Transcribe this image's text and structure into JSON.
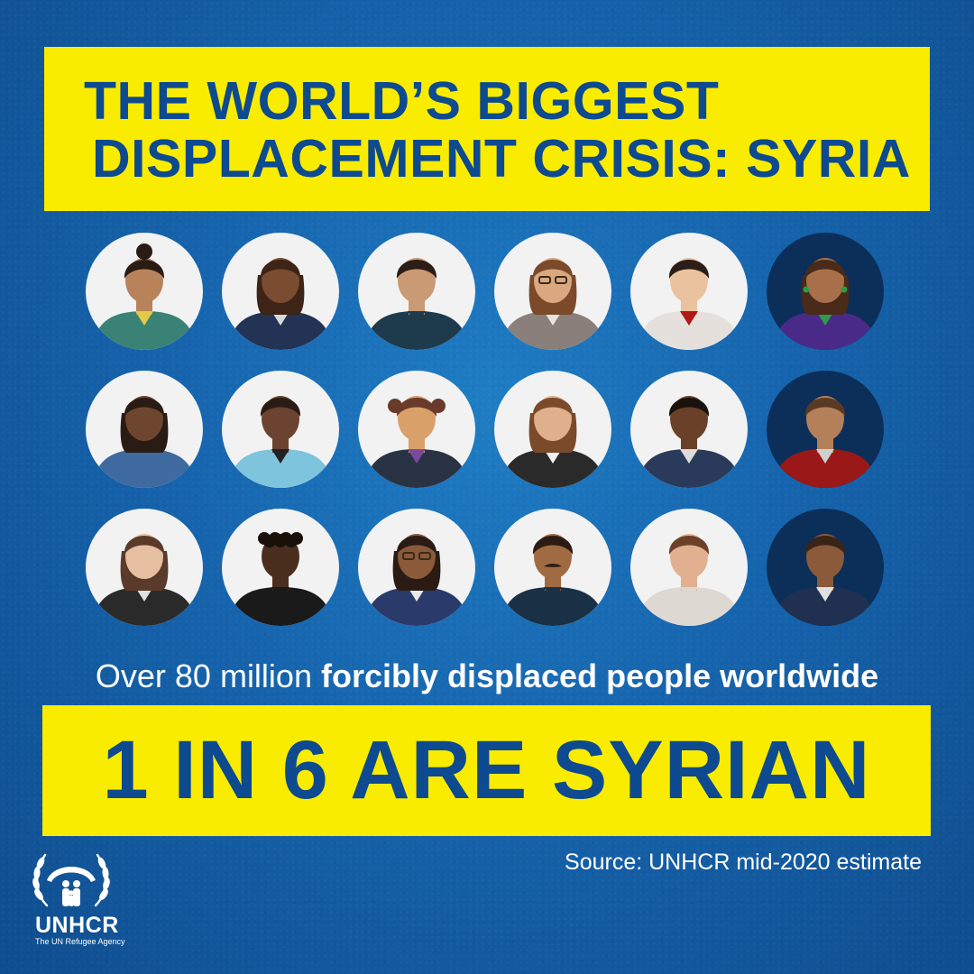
{
  "title": {
    "line1": "THE WORLD’S BIGGEST",
    "line2": "DISPLACEMENT CRISIS: SYRIA"
  },
  "people": [
    {
      "icon": "woman-hair-bun-icon",
      "highlight": false
    },
    {
      "icon": "woman-suit-icon",
      "highlight": false
    },
    {
      "icon": "man-dark-shirt-icon",
      "highlight": false
    },
    {
      "icon": "woman-glasses-icon",
      "highlight": false
    },
    {
      "icon": "man-red-tie-icon",
      "highlight": false
    },
    {
      "icon": "girl-earrings-icon",
      "highlight": true
    },
    {
      "icon": "woman-blue-top-icon",
      "highlight": false
    },
    {
      "icon": "man-blue-shirt-icon",
      "highlight": false
    },
    {
      "icon": "girl-pigtails-icon",
      "highlight": false
    },
    {
      "icon": "woman-vest-icon",
      "highlight": false
    },
    {
      "icon": "man-suit-tie-icon",
      "highlight": false
    },
    {
      "icon": "man-red-sweater-icon",
      "highlight": true
    },
    {
      "icon": "woman-long-hair-icon",
      "highlight": false
    },
    {
      "icon": "child-curly-hair-icon",
      "highlight": false
    },
    {
      "icon": "woman-glasses-blazer-icon",
      "highlight": false
    },
    {
      "icon": "man-mustache-icon",
      "highlight": false
    },
    {
      "icon": "man-white-shirt-icon",
      "highlight": false
    },
    {
      "icon": "man-suit-icon",
      "highlight": true
    }
  ],
  "stat": {
    "prefix": "Over 80 million ",
    "bold": "forcibly displaced people worldwide"
  },
  "result": "1 IN 6 ARE SYRIAN",
  "source": "Source: UNHCR mid-2020 estimate",
  "logo": {
    "name": "UNHCR",
    "tagline": "The UN Refugee Agency"
  },
  "colors": {
    "background": "#1664ad",
    "highlight_yellow": "#f9ec00",
    "title_blue": "#0d4a8f",
    "circle_light": "#f2f2f2",
    "circle_dark": "#0c2f5a"
  }
}
